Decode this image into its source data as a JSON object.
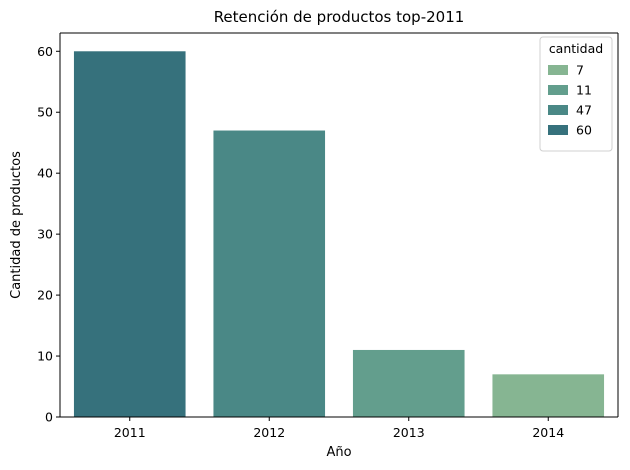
{
  "chart_data": {
    "type": "bar",
    "title": "Retención de productos top-2011",
    "xlabel": "Año",
    "ylabel": "Cantidad de productos",
    "categories": [
      "2011",
      "2012",
      "2013",
      "2014"
    ],
    "values": [
      60,
      47,
      11,
      7
    ],
    "ylim": [
      0,
      63
    ],
    "yticks": [
      0,
      10,
      20,
      30,
      40,
      50,
      60
    ],
    "grid": false,
    "legend": {
      "title": "cantidad",
      "placement": "top-right",
      "entries": [
        {
          "label": "7",
          "color": "#86b592"
        },
        {
          "label": "11",
          "color": "#639e8d"
        },
        {
          "label": "47",
          "color": "#4a8886"
        },
        {
          "label": "60",
          "color": "#36717c"
        }
      ]
    },
    "bar_colors": [
      "#36717c",
      "#4a8886",
      "#639e8d",
      "#86b592"
    ]
  }
}
